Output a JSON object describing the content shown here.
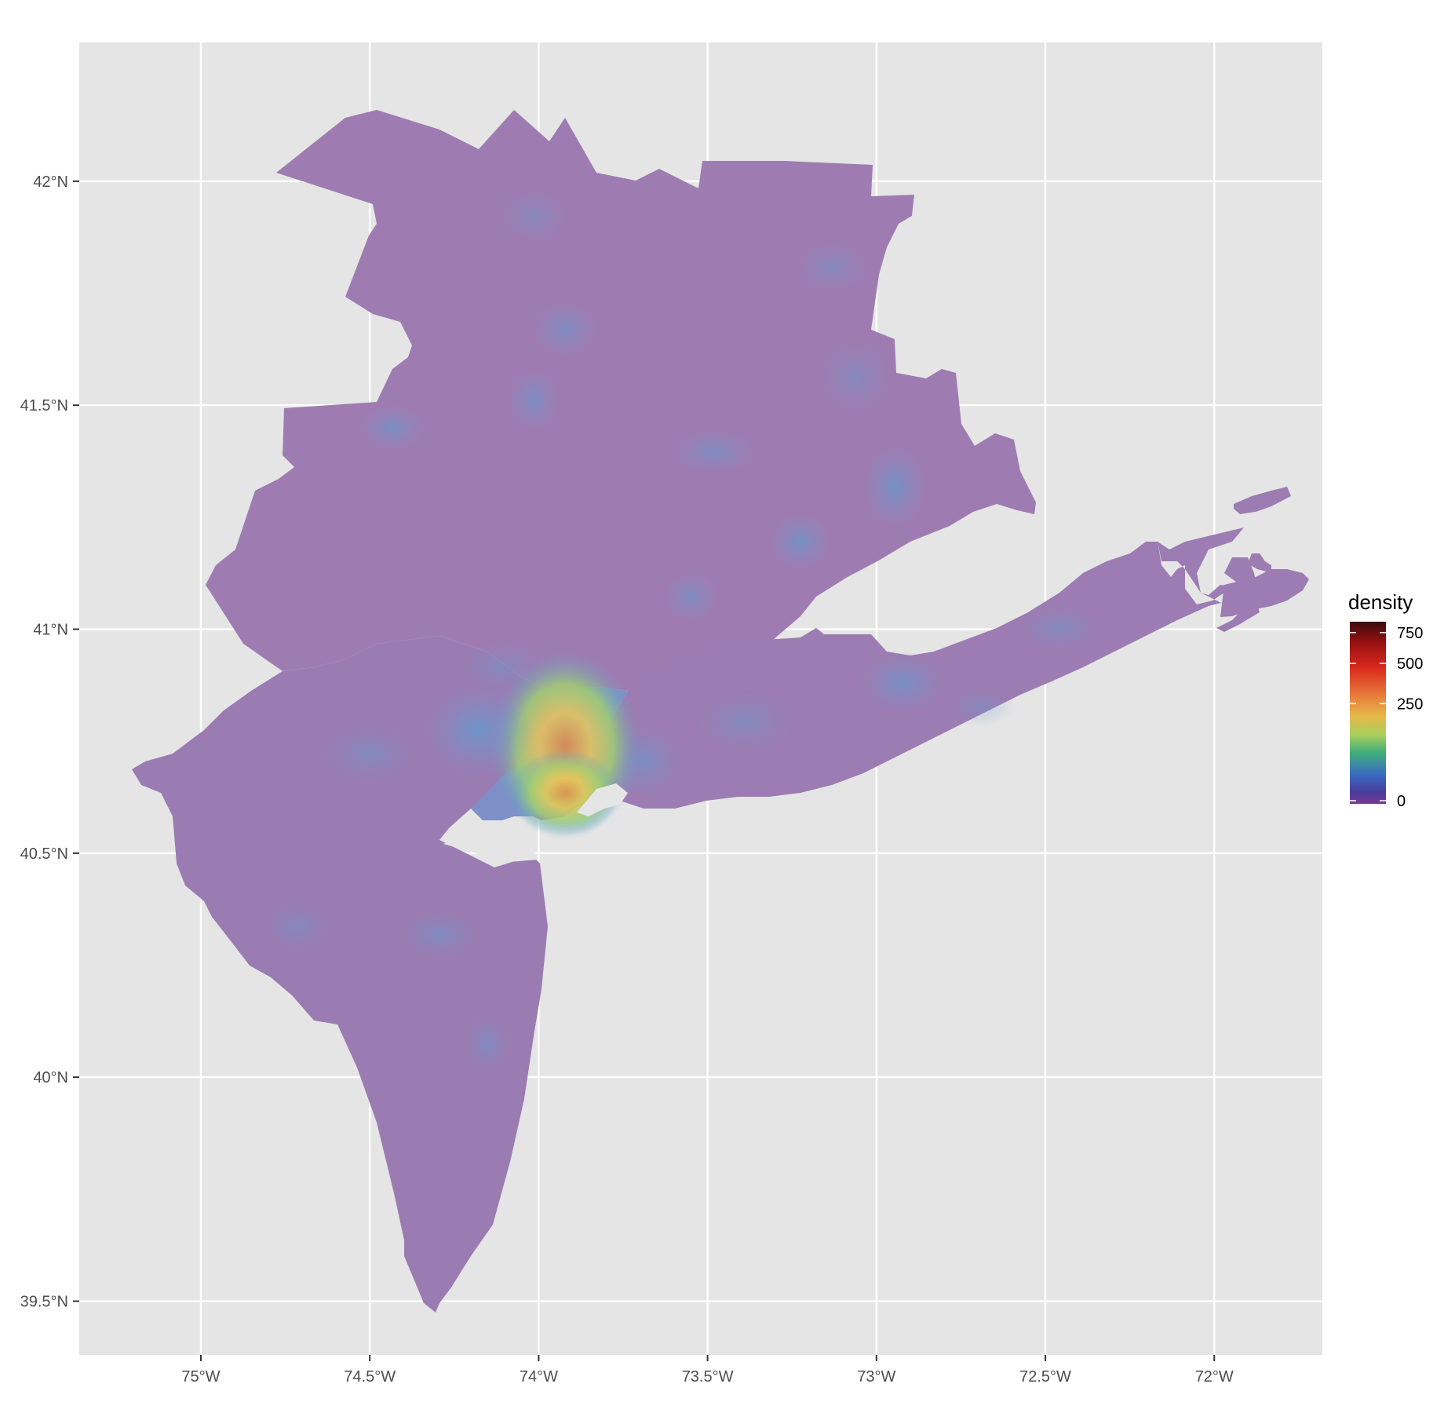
{
  "colors": {
    "panel_background": "#e5e5e5",
    "grid": "#ffffff",
    "region_fill": "#9e7cb1",
    "region_fill_alt": "#8f7db5",
    "suburb_blue": "#7f8fc8",
    "medium_blue": "#5aa0d2",
    "urban_green": "#9fcf72",
    "urban_yellow": "#e8c75a",
    "urban_orange": "#e08a48",
    "axis_text": "#4d4d4d"
  },
  "map": {
    "x_ticks": [
      "75°W",
      "74.5°W",
      "74°W",
      "73.5°W",
      "73°W",
      "72.5°W",
      "72°W"
    ],
    "x_tick_values": [
      -75,
      -74.5,
      -74,
      -73.5,
      -73,
      -72.5,
      -72
    ],
    "y_ticks": [
      "42°N",
      "41.5°N",
      "41°N",
      "40.5°N",
      "40°N",
      "39.5°N"
    ],
    "y_tick_values": [
      42,
      41.5,
      41,
      40.5,
      40,
      39.5
    ],
    "x_range": [
      -75.36,
      -71.68
    ],
    "y_range": [
      39.38,
      42.31
    ],
    "grid": true
  },
  "legend": {
    "title": "density",
    "labels": [
      "750",
      "500",
      "250",
      "0"
    ],
    "values": [
      750,
      500,
      250,
      0
    ],
    "max_value": 880,
    "gradient_stops": [
      {
        "offset": "0%",
        "color": "#3b0a0a"
      },
      {
        "offset": "12%",
        "color": "#9b1111"
      },
      {
        "offset": "25%",
        "color": "#d8281c"
      },
      {
        "offset": "40%",
        "color": "#e8793a"
      },
      {
        "offset": "52%",
        "color": "#e6b94a"
      },
      {
        "offset": "62%",
        "color": "#a9cf5c"
      },
      {
        "offset": "72%",
        "color": "#3fae7a"
      },
      {
        "offset": "84%",
        "color": "#3a6bc3"
      },
      {
        "offset": "94%",
        "color": "#4a3b9a"
      },
      {
        "offset": "100%",
        "color": "#7a3a8f"
      }
    ]
  }
}
